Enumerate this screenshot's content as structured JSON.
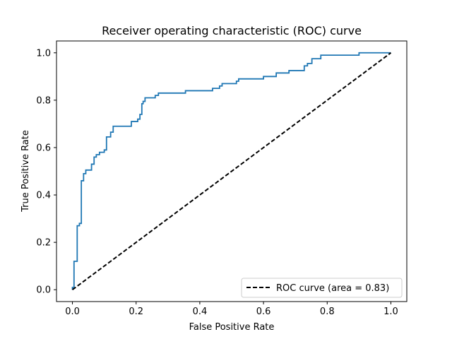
{
  "chart_data": {
    "type": "line",
    "title": "Receiver operating characteristic (ROC) curve",
    "xlabel": "False Positive Rate",
    "ylabel": "True Positive Rate",
    "xlim": [
      -0.05,
      1.05
    ],
    "ylim": [
      -0.05,
      1.05
    ],
    "xticks": [
      "0.0",
      "0.2",
      "0.4",
      "0.6",
      "0.8",
      "1.0"
    ],
    "yticks": [
      "0.0",
      "0.2",
      "0.4",
      "0.6",
      "0.8",
      "1.0"
    ],
    "grid": false,
    "legend": {
      "location": "lower-right",
      "entries": [
        "ROC curve (area = 0.83)"
      ]
    },
    "series": [
      {
        "style": "solid",
        "color": "#1f77b4",
        "points": [
          [
            0.0,
            0.0
          ],
          [
            0.0,
            0.01
          ],
          [
            0.005,
            0.01
          ],
          [
            0.005,
            0.12
          ],
          [
            0.015,
            0.12
          ],
          [
            0.015,
            0.27
          ],
          [
            0.022,
            0.27
          ],
          [
            0.022,
            0.28
          ],
          [
            0.028,
            0.28
          ],
          [
            0.028,
            0.46
          ],
          [
            0.035,
            0.46
          ],
          [
            0.035,
            0.49
          ],
          [
            0.042,
            0.49
          ],
          [
            0.042,
            0.505
          ],
          [
            0.06,
            0.505
          ],
          [
            0.06,
            0.53
          ],
          [
            0.068,
            0.53
          ],
          [
            0.068,
            0.56
          ],
          [
            0.075,
            0.56
          ],
          [
            0.075,
            0.57
          ],
          [
            0.085,
            0.57
          ],
          [
            0.085,
            0.58
          ],
          [
            0.1,
            0.58
          ],
          [
            0.1,
            0.59
          ],
          [
            0.107,
            0.59
          ],
          [
            0.107,
            0.645
          ],
          [
            0.12,
            0.645
          ],
          [
            0.12,
            0.665
          ],
          [
            0.128,
            0.665
          ],
          [
            0.128,
            0.69
          ],
          [
            0.185,
            0.69
          ],
          [
            0.185,
            0.71
          ],
          [
            0.205,
            0.71
          ],
          [
            0.205,
            0.72
          ],
          [
            0.212,
            0.72
          ],
          [
            0.212,
            0.74
          ],
          [
            0.218,
            0.74
          ],
          [
            0.218,
            0.785
          ],
          [
            0.222,
            0.785
          ],
          [
            0.222,
            0.795
          ],
          [
            0.228,
            0.795
          ],
          [
            0.228,
            0.81
          ],
          [
            0.26,
            0.81
          ],
          [
            0.26,
            0.82
          ],
          [
            0.27,
            0.82
          ],
          [
            0.27,
            0.83
          ],
          [
            0.355,
            0.83
          ],
          [
            0.355,
            0.84
          ],
          [
            0.44,
            0.84
          ],
          [
            0.44,
            0.85
          ],
          [
            0.462,
            0.85
          ],
          [
            0.462,
            0.86
          ],
          [
            0.47,
            0.86
          ],
          [
            0.47,
            0.87
          ],
          [
            0.515,
            0.87
          ],
          [
            0.515,
            0.88
          ],
          [
            0.522,
            0.88
          ],
          [
            0.522,
            0.89
          ],
          [
            0.6,
            0.89
          ],
          [
            0.6,
            0.9
          ],
          [
            0.64,
            0.9
          ],
          [
            0.64,
            0.915
          ],
          [
            0.68,
            0.915
          ],
          [
            0.68,
            0.925
          ],
          [
            0.728,
            0.925
          ],
          [
            0.728,
            0.945
          ],
          [
            0.738,
            0.945
          ],
          [
            0.738,
            0.955
          ],
          [
            0.752,
            0.955
          ],
          [
            0.752,
            0.975
          ],
          [
            0.78,
            0.975
          ],
          [
            0.78,
            0.99
          ],
          [
            0.9,
            0.99
          ],
          [
            0.9,
            1.0
          ],
          [
            1.0,
            1.0
          ]
        ]
      },
      {
        "name": "ROC curve (area = 0.83)",
        "style": "dashed",
        "color": "#000000",
        "points": [
          [
            0.0,
            0.0
          ],
          [
            1.0,
            1.0
          ]
        ]
      }
    ]
  }
}
